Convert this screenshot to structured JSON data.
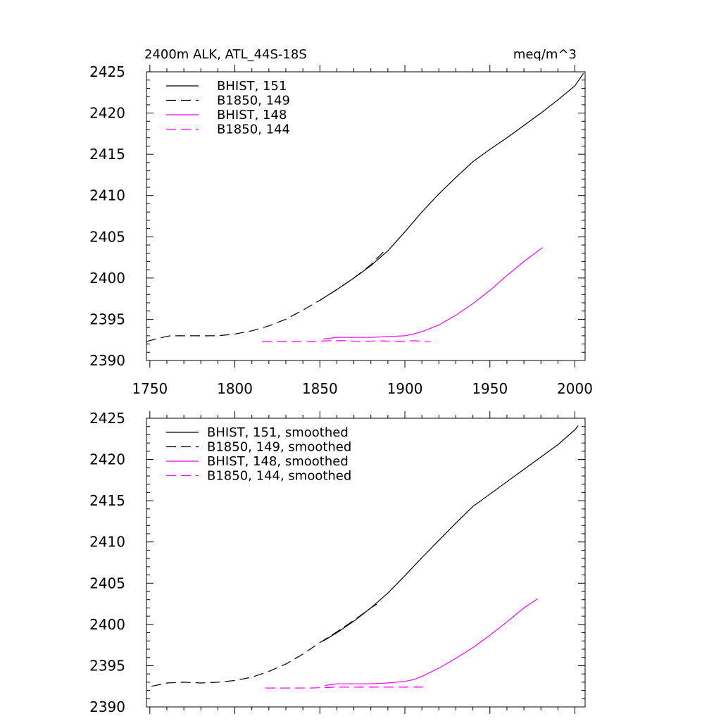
{
  "page": {
    "left_title": "2400m ALK, ATL_44S-18S",
    "right_title": "meq/m^3"
  },
  "chart_data": [
    {
      "type": "line",
      "name": "raw",
      "title": "2400m ALK, ATL_44S-18S",
      "units": "meq/m^3",
      "xlim": [
        1748,
        2006
      ],
      "ylim": [
        2390,
        2425
      ],
      "x_ticks": [
        1750,
        1800,
        1850,
        1900,
        1950,
        2000
      ],
      "y_ticks": [
        2390,
        2395,
        2400,
        2405,
        2410,
        2415,
        2420,
        2425
      ],
      "show_x_tick_labels": true,
      "series": [
        {
          "name": "BHIST, 151",
          "color": "#000000",
          "dash": "solid",
          "x": [
            1850,
            1860,
            1870,
            1880,
            1890,
            1900,
            1910,
            1920,
            1930,
            1940,
            1950,
            1960,
            1970,
            1980,
            1990,
            2000,
            2005
          ],
          "y": [
            2397.3,
            2398.6,
            2400.0,
            2401.5,
            2403.3,
            2405.6,
            2408.0,
            2410.2,
            2412.2,
            2414.1,
            2415.6,
            2417.0,
            2418.5,
            2420.0,
            2421.6,
            2423.3,
            2424.8
          ]
        },
        {
          "name": "B1850, 149",
          "color": "#000000",
          "dash": "dashed",
          "x": [
            1748,
            1755,
            1762,
            1770,
            1780,
            1790,
            1800,
            1810,
            1820,
            1830,
            1840,
            1850,
            1860,
            1870,
            1880,
            1889
          ],
          "y": [
            2392.3,
            2392.7,
            2393.0,
            2393.0,
            2393.0,
            2393.0,
            2393.2,
            2393.6,
            2394.2,
            2395.0,
            2396.1,
            2397.3,
            2398.6,
            2400.0,
            2401.6,
            2403.5
          ]
        },
        {
          "name": "BHIST, 148",
          "color": "#ff00ff",
          "dash": "solid",
          "x": [
            1852,
            1860,
            1870,
            1880,
            1890,
            1900,
            1905,
            1910,
            1920,
            1930,
            1940,
            1950,
            1960,
            1970,
            1981
          ],
          "y": [
            2392.6,
            2392.8,
            2392.8,
            2392.8,
            2392.9,
            2393.0,
            2393.2,
            2393.5,
            2394.3,
            2395.5,
            2396.9,
            2398.5,
            2400.3,
            2402.0,
            2403.7
          ]
        },
        {
          "name": "B1850, 144",
          "color": "#ff00ff",
          "dash": "dashed",
          "x": [
            1816,
            1825,
            1835,
            1845,
            1855,
            1865,
            1875,
            1885,
            1895,
            1905,
            1915
          ],
          "y": [
            2392.3,
            2392.3,
            2392.3,
            2392.3,
            2392.4,
            2392.4,
            2392.3,
            2392.4,
            2392.3,
            2392.4,
            2392.3
          ]
        }
      ]
    },
    {
      "type": "line",
      "name": "smoothed",
      "title": "",
      "xlim": [
        1748,
        2006
      ],
      "ylim": [
        2390,
        2425
      ],
      "x_ticks": [
        1750,
        1800,
        1850,
        1900,
        1950,
        2000
      ],
      "y_ticks": [
        2390,
        2395,
        2400,
        2405,
        2410,
        2415,
        2420,
        2425
      ],
      "show_x_tick_labels": false,
      "series": [
        {
          "name": "BHIST, 151, smoothed",
          "color": "#000000",
          "dash": "solid",
          "x": [
            1852,
            1860,
            1870,
            1880,
            1890,
            1900,
            1910,
            1920,
            1930,
            1940,
            1950,
            1960,
            1970,
            1980,
            1990,
            2000,
            2002
          ],
          "y": [
            2398.0,
            2399.0,
            2400.4,
            2402.0,
            2403.8,
            2405.9,
            2408.1,
            2410.2,
            2412.3,
            2414.3,
            2415.8,
            2417.3,
            2418.8,
            2420.3,
            2421.8,
            2423.6,
            2424.1
          ]
        },
        {
          "name": "B1850, 149, smoothed",
          "color": "#000000",
          "dash": "dashed",
          "x": [
            1751,
            1760,
            1770,
            1780,
            1790,
            1800,
            1810,
            1820,
            1830,
            1840,
            1850,
            1860,
            1870,
            1880,
            1886
          ],
          "y": [
            2392.5,
            2392.9,
            2393.0,
            2392.9,
            2393.0,
            2393.2,
            2393.6,
            2394.3,
            2395.2,
            2396.4,
            2397.8,
            2399.1,
            2400.5,
            2402.0,
            2402.8
          ]
        },
        {
          "name": "BHIST, 148, smoothed",
          "color": "#ff00ff",
          "dash": "solid",
          "x": [
            1853,
            1860,
            1870,
            1880,
            1890,
            1900,
            1905,
            1910,
            1920,
            1930,
            1940,
            1950,
            1960,
            1970,
            1978
          ],
          "y": [
            2392.6,
            2392.8,
            2392.8,
            2392.8,
            2392.9,
            2393.1,
            2393.3,
            2393.7,
            2394.7,
            2395.9,
            2397.2,
            2398.7,
            2400.3,
            2402.0,
            2403.1
          ]
        },
        {
          "name": "B1850, 144, smoothed",
          "color": "#ff00ff",
          "dash": "dashed",
          "x": [
            1818,
            1830,
            1845,
            1860,
            1875,
            1890,
            1905,
            1913
          ],
          "y": [
            2392.3,
            2392.3,
            2392.3,
            2392.4,
            2392.4,
            2392.4,
            2392.4,
            2392.4
          ]
        }
      ]
    }
  ]
}
